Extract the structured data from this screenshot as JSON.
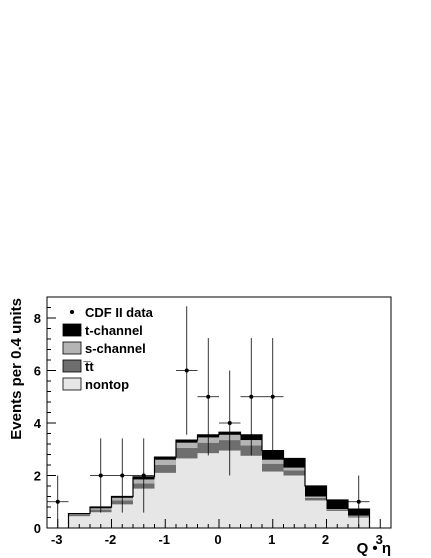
{
  "chart_data": {
    "type": "histogram-stacked",
    "xlabel": "Q • η",
    "ylabel": "Events per 0.4 units",
    "xlim": [
      -3.2,
      3.2
    ],
    "ylim": [
      0,
      8.8
    ],
    "xticks": [
      "-3",
      "-2",
      "-1",
      "0",
      "1",
      "2",
      "3"
    ],
    "yticks": [
      "0",
      "2",
      "4",
      "6",
      "8"
    ],
    "bin_edges": [
      -2.8,
      -2.4,
      -2.0,
      -1.6,
      -1.2,
      -0.8,
      -0.4,
      0.0,
      0.4,
      0.8,
      1.2,
      1.6,
      2.0,
      2.4,
      2.8
    ],
    "series": [
      {
        "name": "nontop",
        "color": "#e6e6e6",
        "values": [
          0.45,
          0.6,
          0.9,
          1.5,
          2.1,
          2.65,
          2.85,
          2.95,
          2.75,
          2.15,
          2.0,
          1.05,
          0.65,
          0.4
        ]
      },
      {
        "name": "t̅t",
        "color": "#6e6e6e",
        "values": [
          0.05,
          0.1,
          0.15,
          0.2,
          0.3,
          0.4,
          0.4,
          0.4,
          0.4,
          0.3,
          0.2,
          0.1,
          0.05,
          0.05
        ]
      },
      {
        "name": "s-channel",
        "color": "#b4b4b4",
        "values": [
          0.02,
          0.05,
          0.1,
          0.15,
          0.2,
          0.2,
          0.2,
          0.2,
          0.2,
          0.15,
          0.1,
          0.05,
          0.02,
          0.02
        ]
      },
      {
        "name": "t-channel",
        "color": "#000000",
        "values": [
          0.03,
          0.05,
          0.05,
          0.1,
          0.1,
          0.1,
          0.1,
          0.1,
          0.2,
          0.35,
          0.35,
          0.4,
          0.35,
          0.25
        ]
      }
    ],
    "data_points": {
      "name": "CDF II data",
      "x": [
        -3.0,
        -2.2,
        -1.8,
        -1.4,
        -0.6,
        -0.2,
        0.2,
        0.6,
        1.0,
        2.6
      ],
      "y": [
        1,
        2,
        2,
        2,
        6,
        5,
        4,
        5,
        5,
        1
      ],
      "xerr": 0.2
    },
    "legend": {
      "placement": "top-left",
      "entries": [
        "CDF II data",
        "t-channel",
        "s-channel",
        "t̅t",
        "nontop"
      ]
    }
  }
}
